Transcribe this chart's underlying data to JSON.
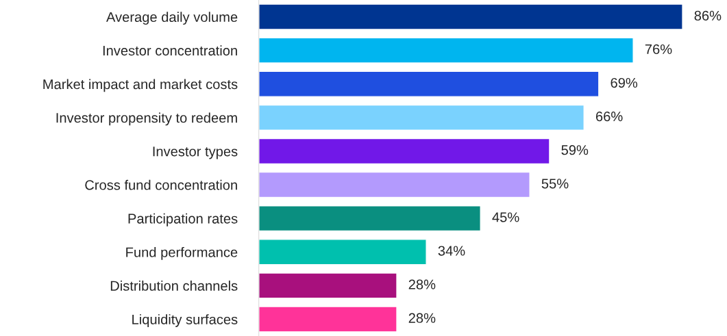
{
  "chart_data": {
    "type": "bar",
    "orientation": "horizontal",
    "data_labels": true,
    "categories": [
      "Average daily volume",
      "Investor concentration",
      "Market impact and market costs",
      "Investor propensity to redeem",
      "Investor types",
      "Cross fund concentration",
      "Participation rates",
      "Fund performance",
      "Distribution channels",
      "Liquidity surfaces"
    ],
    "values": [
      86,
      76,
      69,
      66,
      59,
      55,
      45,
      34,
      28,
      28
    ],
    "value_labels": [
      "86%",
      "76%",
      "69%",
      "66%",
      "59%",
      "55%",
      "45%",
      "34%",
      "28%",
      "28%"
    ],
    "colors": [
      "#003591",
      "#00b5ef",
      "#1f4fe0",
      "#7ad2fe",
      "#7118e8",
      "#b39afd",
      "#0a8f80",
      "#00c0ae",
      "#a8107d",
      "#ff3399"
    ],
    "grid": false,
    "legend": false
  }
}
